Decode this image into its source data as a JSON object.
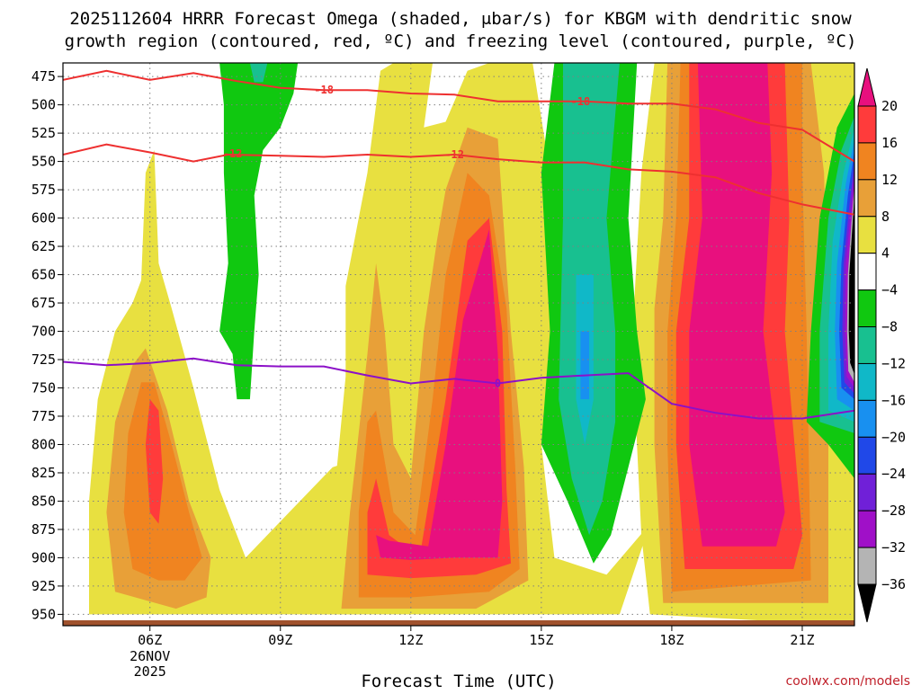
{
  "chart_data": {
    "type": "heatmap",
    "title_lines": [
      "2025112604 HRRR Forecast Omega (shaded, μbar/s) for KBGM with dendritic snow",
      "growth region (contoured, red, ºC) and freezing level (contoured, purple, ºC)"
    ],
    "xlabel": "Forecast Time (UTC)",
    "x_range_hours": [
      4,
      22.2
    ],
    "x_ticks": [
      {
        "hour": 6,
        "label": "06Z",
        "sub": [
          "26NOV",
          "2025"
        ]
      },
      {
        "hour": 9,
        "label": "09Z",
        "sub": []
      },
      {
        "hour": 12,
        "label": "12Z",
        "sub": []
      },
      {
        "hour": 15,
        "label": "15Z",
        "sub": []
      },
      {
        "hour": 18,
        "label": "18Z",
        "sub": []
      },
      {
        "hour": 21,
        "label": "21Z",
        "sub": []
      }
    ],
    "y_range_hpa": [
      463,
      960
    ],
    "y_ticks": [
      "475",
      "500",
      "525",
      "550",
      "575",
      "600",
      "625",
      "650",
      "675",
      "700",
      "725",
      "750",
      "775",
      "800",
      "825",
      "850",
      "875",
      "900",
      "925",
      "950"
    ],
    "colorbar": {
      "labels": [
        "20",
        "16",
        "12",
        "8",
        "4",
        "−4",
        "−8",
        "−12",
        "−16",
        "−20",
        "−24",
        "−28",
        "−32",
        "−36"
      ],
      "bins": [
        {
          "range": ">20",
          "color": "#e8107e"
        },
        {
          "range": "16..20",
          "color": "#ff3b3b"
        },
        {
          "range": "12..16",
          "color": "#f08420"
        },
        {
          "range": "8..12",
          "color": "#e8a038"
        },
        {
          "range": "4..8",
          "color": "#e8e040"
        },
        {
          "range": "-4..4",
          "color": "#ffffff"
        },
        {
          "range": "-8..-4",
          "color": "#10c810"
        },
        {
          "range": "-12..-8",
          "color": "#18c090"
        },
        {
          "range": "-16..-12",
          "color": "#10b8c8"
        },
        {
          "range": "-20..-16",
          "color": "#1890f0"
        },
        {
          "range": "-24..-20",
          "color": "#2048e8"
        },
        {
          "range": "-28..-24",
          "color": "#7020d8"
        },
        {
          "range": "-32..-28",
          "color": "#a010c8"
        },
        {
          "range": "-36..-32",
          "color": "#b4b4b4"
        },
        {
          "range": "<-36",
          "color": "#000000"
        }
      ]
    },
    "contours": [
      {
        "name": "-18C",
        "color": "#ee3030",
        "label": "-18",
        "label_points": [
          [
            10.0,
            487
          ],
          [
            15.9,
            497
          ]
        ],
        "points": [
          [
            4,
            478
          ],
          [
            5,
            470
          ],
          [
            6,
            478
          ],
          [
            7,
            472
          ],
          [
            8,
            479
          ],
          [
            9,
            485
          ],
          [
            10,
            487
          ],
          [
            11,
            487
          ],
          [
            12,
            490
          ],
          [
            13,
            491
          ],
          [
            14,
            497
          ],
          [
            15,
            497
          ],
          [
            16,
            497
          ],
          [
            17,
            499
          ],
          [
            18,
            499
          ],
          [
            19,
            504
          ],
          [
            20,
            516
          ],
          [
            21,
            522
          ],
          [
            22.2,
            550
          ]
        ]
      },
      {
        "name": "-12C",
        "color": "#ee3030",
        "label": "-12",
        "label_points": [
          [
            7.9,
            543
          ],
          [
            13.0,
            544
          ]
        ],
        "points": [
          [
            4,
            544
          ],
          [
            5,
            535
          ],
          [
            6,
            542
          ],
          [
            7,
            550
          ],
          [
            7.8,
            544
          ],
          [
            9,
            545
          ],
          [
            10,
            546
          ],
          [
            11,
            544
          ],
          [
            12,
            546
          ],
          [
            13,
            544
          ],
          [
            14,
            548
          ],
          [
            15,
            551
          ],
          [
            16,
            551
          ],
          [
            17,
            557
          ],
          [
            18,
            559
          ],
          [
            19,
            564
          ],
          [
            20,
            578
          ],
          [
            21,
            588
          ],
          [
            22.2,
            597
          ]
        ]
      },
      {
        "name": "0C freezing level",
        "color": "#8c10c8",
        "label": "0",
        "label_points": [
          [
            14.0,
            746
          ]
        ],
        "points": [
          [
            4,
            727
          ],
          [
            5,
            730
          ],
          [
            6,
            728
          ],
          [
            7,
            724
          ],
          [
            8,
            730
          ],
          [
            9,
            731
          ],
          [
            10,
            731
          ],
          [
            11,
            739
          ],
          [
            12,
            746
          ],
          [
            13,
            742
          ],
          [
            14,
            746
          ],
          [
            15,
            741
          ],
          [
            16,
            739
          ],
          [
            17,
            737
          ],
          [
            18,
            764
          ],
          [
            19,
            772
          ],
          [
            20,
            777
          ],
          [
            21,
            777
          ],
          [
            22.2,
            770
          ]
        ]
      }
    ]
  },
  "credit": "coolwx.com/models"
}
